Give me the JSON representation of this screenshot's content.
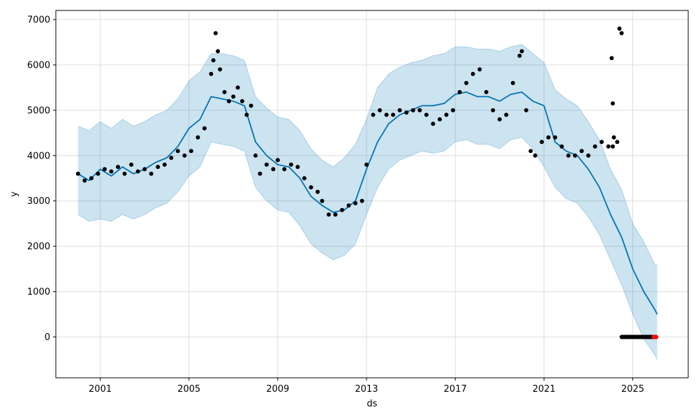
{
  "chart_data": {
    "type": "line",
    "xlabel": "ds",
    "ylabel": "y",
    "xlim": [
      1999.0,
      2027.5
    ],
    "ylim": [
      -900,
      7200
    ],
    "grid": true,
    "x_ticks": [
      2001,
      2005,
      2009,
      2013,
      2017,
      2021,
      2025
    ],
    "x_tick_labels": [
      "2001",
      "2005",
      "2009",
      "2013",
      "2017",
      "2021",
      "2025"
    ],
    "y_ticks": [
      0,
      1000,
      2000,
      3000,
      4000,
      5000,
      6000,
      7000
    ],
    "y_tick_labels": [
      "0",
      "1000",
      "2000",
      "3000",
      "4000",
      "5000",
      "6000",
      "7000"
    ],
    "colors": {
      "forecast_line": "#0072B2",
      "uncertainty_band": "#0072B2",
      "observed_points": "#000000",
      "highlight_points": "#FF0000",
      "grid": "#dddddd"
    },
    "series": [
      {
        "kind": "forecast",
        "x": [
          2000.0,
          2000.5,
          2001.0,
          2001.5,
          2002.0,
          2002.5,
          2003.0,
          2003.5,
          2004.0,
          2004.5,
          2005.0,
          2005.5,
          2006.0,
          2006.5,
          2007.0,
          2007.5,
          2008.0,
          2008.5,
          2009.0,
          2009.5,
          2010.0,
          2010.5,
          2011.0,
          2011.5,
          2012.0,
          2012.5,
          2013.0,
          2013.5,
          2014.0,
          2014.5,
          2015.0,
          2015.5,
          2016.0,
          2016.5,
          2017.0,
          2017.5,
          2018.0,
          2018.5,
          2019.0,
          2019.5,
          2020.0,
          2020.5,
          2021.0,
          2021.5,
          2022.0,
          2022.5,
          2023.0,
          2023.5,
          2024.0,
          2024.5,
          2025.0,
          2025.5,
          2026.0,
          2026.1
        ],
        "y": [
          3600,
          3450,
          3700,
          3550,
          3750,
          3600,
          3700,
          3850,
          3950,
          4200,
          4600,
          4800,
          5300,
          5250,
          5200,
          5100,
          4300,
          4000,
          3800,
          3750,
          3500,
          3100,
          2900,
          2750,
          2800,
          3000,
          3700,
          4300,
          4700,
          4900,
          5000,
          5100,
          5100,
          5150,
          5350,
          5400,
          5300,
          5300,
          5200,
          5350,
          5400,
          5200,
          5100,
          4300,
          4100,
          4000,
          3700,
          3300,
          2700,
          2200,
          1500,
          1000,
          600,
          500
        ]
      },
      {
        "kind": "uncertainty_band",
        "x": [
          2000.0,
          2000.5,
          2001.0,
          2001.5,
          2002.0,
          2002.5,
          2003.0,
          2003.5,
          2004.0,
          2004.5,
          2005.0,
          2005.5,
          2006.0,
          2006.5,
          2007.0,
          2007.5,
          2008.0,
          2008.5,
          2009.0,
          2009.5,
          2010.0,
          2010.5,
          2011.0,
          2011.5,
          2012.0,
          2012.5,
          2013.0,
          2013.5,
          2014.0,
          2014.5,
          2015.0,
          2015.5,
          2016.0,
          2016.5,
          2017.0,
          2017.5,
          2018.0,
          2018.5,
          2019.0,
          2019.5,
          2020.0,
          2020.5,
          2021.0,
          2021.5,
          2022.0,
          2022.5,
          2023.0,
          2023.5,
          2024.0,
          2024.5,
          2025.0,
          2025.5,
          2026.0,
          2026.1
        ],
        "upper": [
          4650,
          4550,
          4750,
          4600,
          4800,
          4650,
          4750,
          4900,
          5000,
          5250,
          5650,
          5850,
          6250,
          6250,
          6200,
          6100,
          5300,
          5050,
          4850,
          4800,
          4550,
          4150,
          3900,
          3750,
          3950,
          4250,
          4800,
          5500,
          5800,
          5950,
          6050,
          6100,
          6200,
          6250,
          6400,
          6400,
          6350,
          6350,
          6300,
          6400,
          6450,
          6250,
          6050,
          5450,
          5250,
          5100,
          4750,
          4350,
          3700,
          3250,
          2500,
          2100,
          1600,
          1600
        ],
        "lower": [
          2700,
          2550,
          2600,
          2550,
          2700,
          2600,
          2700,
          2850,
          2950,
          3200,
          3550,
          3750,
          4300,
          4250,
          4200,
          4100,
          3300,
          3000,
          2800,
          2750,
          2450,
          2050,
          1850,
          1700,
          1800,
          2050,
          2700,
          3300,
          3700,
          3900,
          4000,
          4100,
          4050,
          4100,
          4300,
          4350,
          4250,
          4250,
          4150,
          4350,
          4400,
          4150,
          3750,
          3300,
          3050,
          2950,
          2650,
          2250,
          1700,
          1150,
          500,
          -50,
          -400,
          -500
        ]
      },
      {
        "kind": "observed",
        "x": [
          2000.0,
          2000.3,
          2000.6,
          2000.9,
          2001.2,
          2001.5,
          2001.8,
          2002.1,
          2002.4,
          2002.7,
          2003.0,
          2003.3,
          2003.6,
          2003.9,
          2004.2,
          2004.5,
          2004.8,
          2005.1,
          2005.4,
          2005.7,
          2006.0,
          2006.1,
          2006.2,
          2006.3,
          2006.4,
          2006.6,
          2006.8,
          2007.0,
          2007.2,
          2007.4,
          2007.6,
          2007.8,
          2008.0,
          2008.2,
          2008.5,
          2008.8,
          2009.0,
          2009.3,
          2009.6,
          2009.9,
          2010.2,
          2010.5,
          2010.8,
          2011.0,
          2011.3,
          2011.6,
          2011.9,
          2012.2,
          2012.5,
          2012.8,
          2013.0,
          2013.3,
          2013.6,
          2013.9,
          2014.2,
          2014.5,
          2014.8,
          2015.1,
          2015.4,
          2015.7,
          2016.0,
          2016.3,
          2016.6,
          2016.9,
          2017.2,
          2017.5,
          2017.8,
          2018.1,
          2018.4,
          2018.7,
          2019.0,
          2019.3,
          2019.6,
          2019.9,
          2020.0,
          2020.2,
          2020.4,
          2020.6,
          2020.9,
          2021.2,
          2021.5,
          2021.8,
          2022.1,
          2022.4,
          2022.7,
          2023.0,
          2023.3,
          2023.6,
          2023.9,
          2024.1,
          2024.3,
          2024.4,
          2024.5
        ],
        "y": [
          3600,
          3450,
          3500,
          3600,
          3700,
          3650,
          3750,
          3600,
          3800,
          3650,
          3700,
          3600,
          3750,
          3800,
          3950,
          4100,
          4000,
          4100,
          4400,
          4600,
          5800,
          6100,
          6700,
          6300,
          5900,
          5400,
          5200,
          5300,
          5500,
          5200,
          4900,
          5100,
          4000,
          3600,
          3800,
          3700,
          3900,
          3700,
          3800,
          3750,
          3500,
          3300,
          3200,
          3000,
          2700,
          2700,
          2800,
          2900,
          2950,
          3000,
          3800,
          4900,
          5000,
          4900,
          4900,
          5000,
          4950,
          5000,
          5000,
          4900,
          4700,
          4800,
          4900,
          5000,
          5400,
          5600,
          5800,
          5900,
          5400,
          5000,
          4800,
          4900,
          5600,
          6200,
          6300,
          5000,
          4100,
          4000,
          4300,
          4400,
          4400,
          4200,
          4000,
          4000,
          4100,
          4000,
          4200,
          4300,
          4200,
          4200,
          4300,
          6800,
          6700
        ]
      },
      {
        "kind": "observed_outliers",
        "x": [
          2024.05,
          2024.1,
          2024.15
        ],
        "y": [
          6150,
          5150,
          4400
        ]
      },
      {
        "kind": "observed_zero",
        "x_start": 2024.5,
        "x_end": 2026.0,
        "y": 0
      },
      {
        "kind": "highlight",
        "x": [
          2025.95,
          2026.05
        ],
        "y": [
          0,
          0
        ]
      }
    ]
  }
}
